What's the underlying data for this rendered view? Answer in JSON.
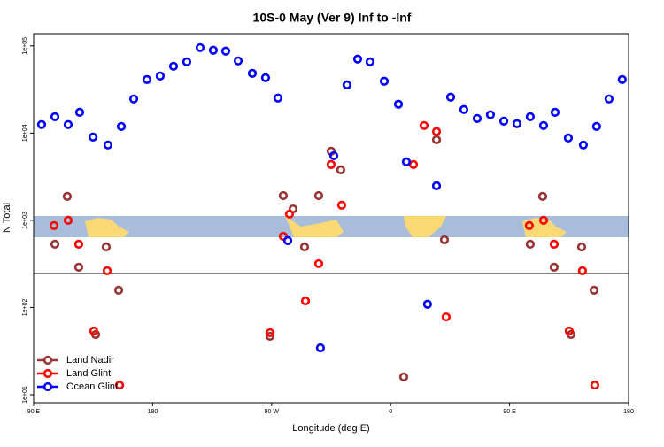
{
  "chart_data": {
    "type": "scatter",
    "title": "10S-0 May (Ver 9)   Inf to -Inf",
    "xlabel": "Longitude (deg E)",
    "ylabel": "N Total",
    "log_y": true,
    "legend": "bottom-left",
    "xlim": [
      90,
      540
    ],
    "ylim": [
      8.1,
      138000
    ],
    "xticks": [
      {
        "value": 90,
        "label": "90 E"
      },
      {
        "value": 180,
        "label": "180"
      },
      {
        "value": 270,
        "label": "90 W"
      },
      {
        "value": 360,
        "label": "0"
      },
      {
        "value": 450,
        "label": "90 E"
      },
      {
        "value": 540,
        "label": "180"
      }
    ],
    "yticks": [
      {
        "value": 10,
        "label": "1e+01"
      },
      {
        "value": 100,
        "label": "1e+02"
      },
      {
        "value": 1000,
        "label": "1e+03"
      },
      {
        "value": 10000,
        "label": "1e+04"
      },
      {
        "value": 100000,
        "label": "1e+05"
      }
    ],
    "series": [
      {
        "name": "Land Nadir",
        "color": "#993333",
        "x": [
          106.1,
          115.4,
          124.1,
          144.9,
          154.3,
          136.9,
          268.8,
          278.8,
          286.2,
          294.9,
          305.6,
          315.0,
          322.3,
          394.7,
          400.7,
          369.9,
          465.6,
          475.0,
          483.7,
          504.5,
          513.9,
          496.4
        ],
        "values": [
          532,
          1880,
          290,
          495,
          158,
          49,
          46.8,
          1920,
          1350,
          495,
          1920,
          6190,
          3790,
          8390,
          598,
          16,
          532,
          1880,
          290,
          495,
          158,
          49
        ]
      },
      {
        "name": "Land Glint",
        "color": "#ff0000",
        "x": [
          105.4,
          116.1,
          124.1,
          145.6,
          135.5,
          155.0,
          268.8,
          278.8,
          283.5,
          295.6,
          305.6,
          315.0,
          323.0,
          385.3,
          394.7,
          377.3,
          402.0,
          464.9,
          475.7,
          483.7,
          505.1,
          495.1,
          514.5
        ],
        "values": [
          869,
          1000,
          532,
          264,
          53.8,
          12.9,
          51.4,
          656,
          1180,
          119,
          318,
          4360,
          1490,
          12200,
          10400,
          4360,
          78,
          869,
          1000,
          532,
          264,
          53.8,
          12.9
        ]
      },
      {
        "name": "Ocean Glint",
        "color": "#0000ff",
        "x": [
          96.0,
          106.1,
          116.1,
          124.8,
          134.9,
          146.2,
          156.3,
          165.7,
          175.7,
          185.7,
          195.8,
          205.8,
          215.9,
          225.9,
          235.3,
          244.7,
          255.4,
          265.4,
          274.8,
          282.2,
          317.0,
          327.0,
          335.1,
          344.4,
          355.2,
          365.9,
          371.9,
          394.7,
          405.4,
          415.4,
          425.5,
          435.5,
          445.6,
          455.6,
          465.6,
          475.7,
          484.4,
          494.4,
          505.8,
          515.8,
          525.2,
          535.2,
          306.9,
          387.9
        ],
        "values": [
          12500,
          15400,
          12500,
          17300,
          9000,
          7300,
          11900,
          24600,
          41100,
          45100,
          58400,
          65600,
          95400,
          89000,
          87000,
          67200,
          48400,
          43100,
          25200,
          584,
          5500,
          35700,
          70500,
          65600,
          39300,
          21400,
          4680,
          2490,
          25800,
          18600,
          14700,
          16200,
          13700,
          12800,
          15400,
          12200,
          17300,
          8790,
          7300,
          11900,
          24600,
          41100,
          34.5,
          109
        ]
      }
    ]
  }
}
